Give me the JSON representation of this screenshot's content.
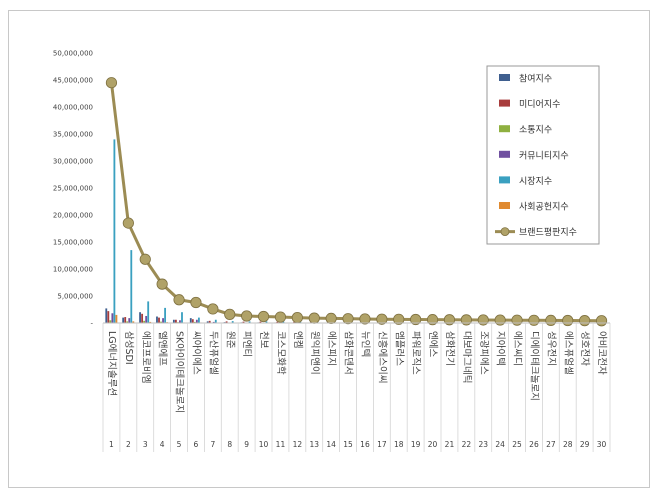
{
  "chart_data": {
    "type": "bar",
    "title": "",
    "xlabel": "",
    "ylabel": "",
    "ylim": [
      0,
      50000000
    ],
    "yticks": [
      "-",
      "5,000,000",
      "10,000,000",
      "15,000,000",
      "20,000,000",
      "25,000,000",
      "30,000,000",
      "35,000,000",
      "40,000,000",
      "45,000,000",
      "50,000,000"
    ],
    "grid": false,
    "legend_position": "right",
    "ranks": [
      "1",
      "2",
      "3",
      "4",
      "5",
      "6",
      "7",
      "8",
      "9",
      "10",
      "11",
      "12",
      "13",
      "14",
      "15",
      "16",
      "17",
      "18",
      "19",
      "20",
      "21",
      "22",
      "23",
      "24",
      "25",
      "26",
      "27",
      "28",
      "29",
      "30"
    ],
    "categories": [
      "LG에너지솔루션",
      "삼성SDI",
      "에코프로비엠",
      "엘앤에프",
      "SK아이이테크놀로지",
      "씨아이에스",
      "두산퓨얼셀",
      "원준",
      "피엔티",
      "천보",
      "코스모화학",
      "엔켐",
      "원익피앤이",
      "에스피지",
      "삼화콘덴서",
      "뉴인텍",
      "신흥에스이씨",
      "엠플러스",
      "파워로직스",
      "엔에스",
      "삼화전기",
      "대보마그네틱",
      "조광피에스",
      "지아이텍",
      "에스씨디",
      "디에이테크놀로지",
      "성우전지",
      "에스퓨얼셀",
      "성호전자",
      "아비코전자"
    ],
    "series": [
      {
        "name": "참여지수",
        "color": "#3f5f8f",
        "kind": "bar",
        "values": [
          2700000,
          1000000,
          2000000,
          1200000,
          600000,
          900000,
          300000,
          150000,
          120000,
          110000,
          100000,
          90000,
          80000,
          70000,
          60000,
          55000,
          50000,
          45000,
          40000,
          38000,
          35000,
          32000,
          30000,
          28000,
          26000,
          24000,
          22000,
          20000,
          18000,
          16000
        ]
      },
      {
        "name": "미디어지수",
        "color": "#a83c3c",
        "kind": "bar",
        "values": [
          2200000,
          1100000,
          1700000,
          1000000,
          600000,
          700000,
          400000,
          300000,
          250000,
          250000,
          230000,
          220000,
          200000,
          190000,
          180000,
          170000,
          160000,
          150000,
          140000,
          130000,
          120000,
          110000,
          100000,
          95000,
          90000,
          85000,
          80000,
          75000,
          70000,
          65000
        ]
      },
      {
        "name": "소통지수",
        "color": "#8fb040",
        "kind": "bar",
        "values": [
          500000,
          300000,
          400000,
          250000,
          150000,
          200000,
          80000,
          40000,
          30000,
          25000,
          25000,
          20000,
          20000,
          18000,
          15000,
          15000,
          12000,
          12000,
          10000,
          10000,
          9000,
          8000,
          8000,
          7000,
          7000,
          6000,
          6000,
          5000,
          5000,
          4000
        ]
      },
      {
        "name": "커뮤니티지수",
        "color": "#7050a0",
        "kind": "bar",
        "values": [
          1800000,
          900000,
          1300000,
          900000,
          500000,
          600000,
          200000,
          80000,
          60000,
          50000,
          50000,
          45000,
          40000,
          35000,
          30000,
          28000,
          26000,
          24000,
          22000,
          20000,
          18000,
          16000,
          15000,
          14000,
          13000,
          12000,
          11000,
          10000,
          9000,
          8000
        ]
      },
      {
        "name": "시장지수",
        "color": "#3aa0c0",
        "kind": "bar",
        "values": [
          34000000,
          13500000,
          4000000,
          2800000,
          2000000,
          1000000,
          600000,
          350000,
          300000,
          280000,
          260000,
          250000,
          240000,
          230000,
          220000,
          210000,
          200000,
          190000,
          180000,
          170000,
          160000,
          150000,
          140000,
          130000,
          120000,
          110000,
          100000,
          90000,
          80000,
          70000
        ]
      },
      {
        "name": "사회공헌지수",
        "color": "#e08a30",
        "kind": "bar",
        "values": [
          1500000,
          300000,
          200000,
          150000,
          100000,
          100000,
          50000,
          20000,
          15000,
          12000,
          10000,
          10000,
          8000,
          8000,
          7000,
          6000,
          5000,
          5000,
          4000,
          4000,
          3000,
          3000,
          3000,
          2000,
          2000,
          2000,
          2000,
          1000,
          1000,
          1000
        ]
      },
      {
        "name": "브랜드평판지수",
        "color": "#9c8c54",
        "kind": "line",
        "values": [
          44500000,
          18500000,
          11800000,
          7200000,
          4300000,
          3800000,
          2600000,
          1600000,
          1300000,
          1200000,
          1100000,
          1000000,
          900000,
          850000,
          800000,
          750000,
          700000,
          680000,
          650000,
          620000,
          600000,
          580000,
          560000,
          540000,
          520000,
          500000,
          480000,
          460000,
          440000,
          420000
        ]
      }
    ]
  }
}
